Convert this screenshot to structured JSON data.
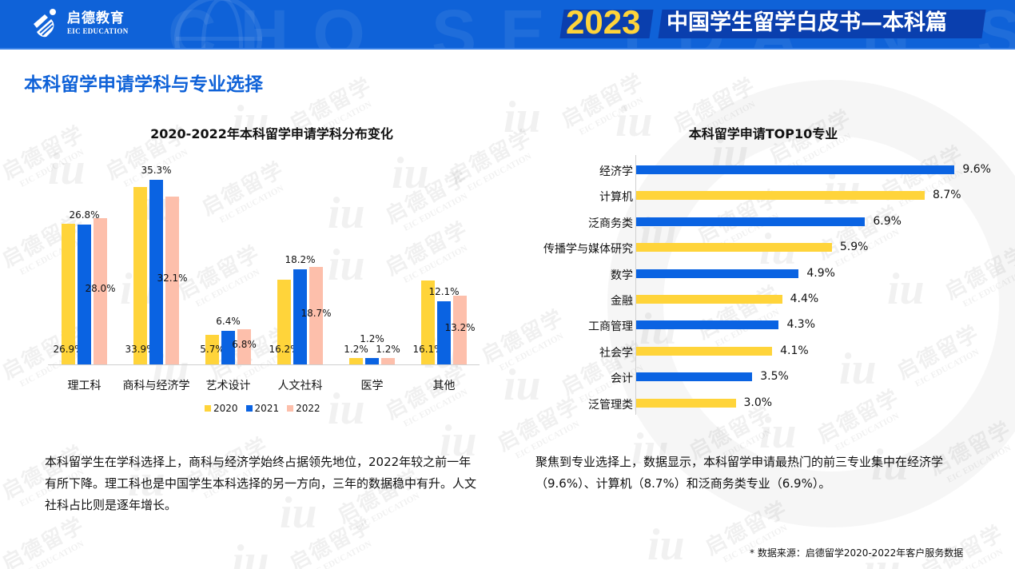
{
  "header": {
    "logo_cn": "启德教育",
    "logo_en": "EIC EDUCATION",
    "year": "2023",
    "title": "中国学生留学白皮书—本科篇",
    "bg_deco": "CHO SE TDA N SO N"
  },
  "watermark": {
    "cn": "启德留学",
    "en": "EIC EDUCATION",
    "mark": "iu"
  },
  "section_title": "本科留学申请学科与专业选择",
  "colors": {
    "brand_blue": "#0f62d8",
    "y2020": "#ffd43a",
    "y2021": "#0a63e2",
    "y2022": "#fdbfab",
    "year_text": "#ffd43a"
  },
  "chart_data": [
    {
      "type": "bar",
      "title": "2020-2022年本科留学申请学科分布变化",
      "categories": [
        "理工科",
        "商科与经济学",
        "艺术设计",
        "人文社科",
        "医学",
        "其他"
      ],
      "series": [
        {
          "name": "2020",
          "color": "#ffd43a",
          "values": [
            26.9,
            33.9,
            5.7,
            16.2,
            1.2,
            16.1
          ]
        },
        {
          "name": "2021",
          "color": "#0a63e2",
          "values": [
            26.8,
            35.3,
            6.4,
            18.2,
            1.2,
            12.1
          ]
        },
        {
          "name": "2022",
          "color": "#fdbfab",
          "values": [
            28.0,
            32.1,
            6.8,
            18.7,
            1.2,
            13.2
          ]
        }
      ],
      "value_labels": [
        [
          "26.9%",
          "26.8%",
          "28.0%"
        ],
        [
          "33.9%",
          "35.3%",
          "32.1%"
        ],
        [
          "5.7%",
          "6.4%",
          "6.8%"
        ],
        [
          "16.2%",
          "18.2%",
          "18.7%"
        ],
        [
          "1.2%",
          "1.2%",
          "1.2%"
        ],
        [
          "16.1%",
          "12.1%",
          "13.2%"
        ]
      ],
      "xlabel": "",
      "ylabel": "",
      "ylim": [
        0,
        40
      ],
      "grid": false,
      "legend_position": "bottom"
    },
    {
      "type": "bar",
      "orientation": "horizontal",
      "title": "本科留学申请TOP10专业",
      "categories": [
        "经济学",
        "计算机",
        "泛商务类",
        "传播学与媒体研究",
        "数学",
        "金融",
        "工商管理",
        "社会学",
        "会计",
        "泛管理类"
      ],
      "values": [
        9.6,
        8.7,
        6.9,
        5.9,
        4.9,
        4.4,
        4.3,
        4.1,
        3.5,
        3.0
      ],
      "value_labels": [
        "9.6%",
        "8.7%",
        "6.9%",
        "5.9%",
        "4.9%",
        "4.4%",
        "4.3%",
        "4.1%",
        "3.5%",
        "3.0%"
      ],
      "bar_colors": [
        "#0a63e2",
        "#ffd43a",
        "#0a63e2",
        "#ffd43a",
        "#0a63e2",
        "#ffd43a",
        "#0a63e2",
        "#ffd43a",
        "#0a63e2",
        "#ffd43a"
      ],
      "xlabel": "",
      "ylabel": "",
      "xlim": [
        0,
        10
      ],
      "grid": false
    }
  ],
  "left_paragraph": "本科留学生在学科选择上，商科与经济学始终占据领先地位，2022年较之前一年有所下降。理工科也是中国学生本科选择的另一方向，三年的数据稳中有升。人文社科占比则是逐年增长。",
  "right_paragraph": "聚焦到专业选择上，数据显示，本科留学申请最热门的前三专业集中在经济学（9.6%）、计算机（8.7%）和泛商务类专业（6.9%）。",
  "source_note": "* 数据来源：启德留学2020-2022年客户服务数据"
}
